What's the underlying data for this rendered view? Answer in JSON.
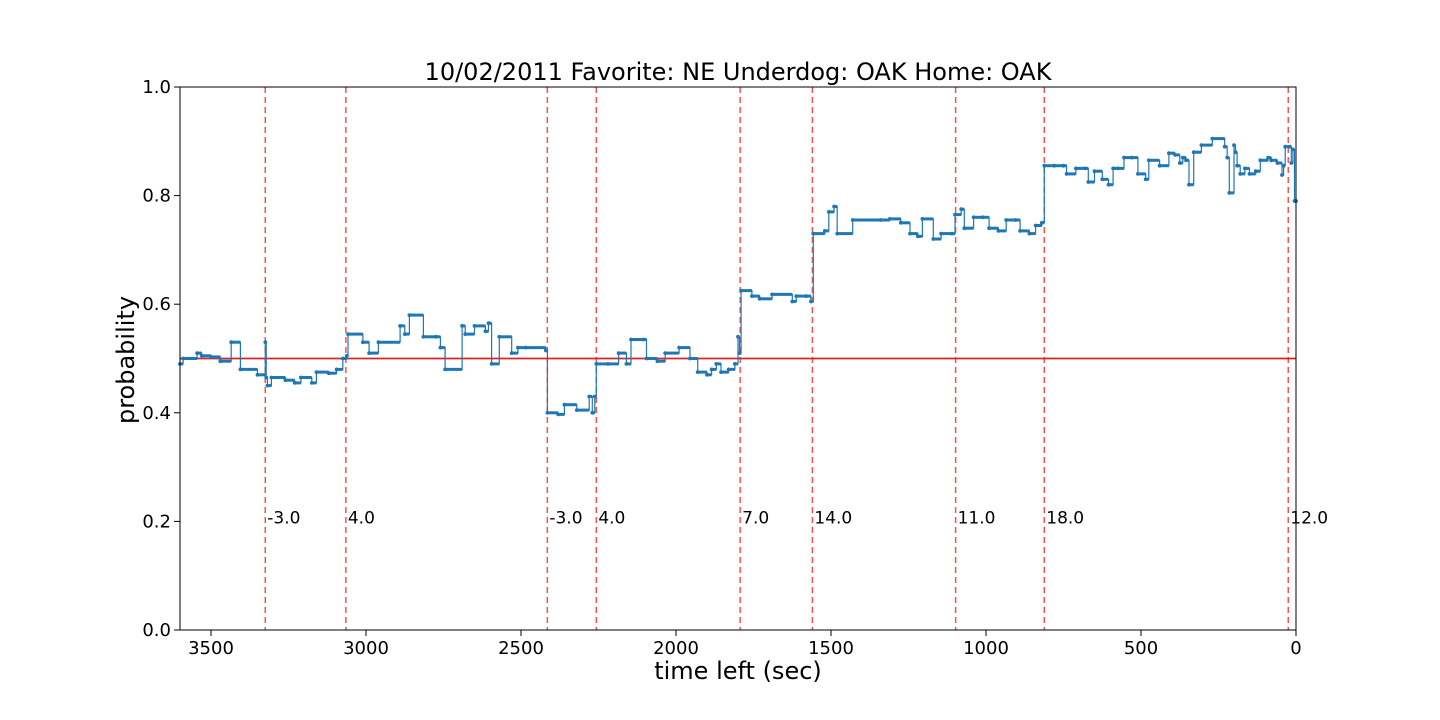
{
  "chart_data": {
    "type": "line",
    "title": "10/02/2011 Favorite: NE Underdog: OAK Home: OAK",
    "xlabel": "time left (sec)",
    "ylabel": "probability",
    "xlim": [
      3600,
      0
    ],
    "ylim": [
      0.0,
      1.0
    ],
    "x_ticks": [
      3500,
      3000,
      2500,
      2000,
      1500,
      1000,
      500,
      0
    ],
    "y_ticks": [
      0.0,
      0.2,
      0.4,
      0.6,
      0.8,
      1.0
    ],
    "x_tick_labels": [
      "3500",
      "3000",
      "2500",
      "2000",
      "1500",
      "1000",
      "500",
      "0"
    ],
    "y_tick_labels": [
      "0.0",
      "0.2",
      "0.4",
      "0.6",
      "0.8",
      "1.0"
    ],
    "grid": false,
    "reference_line": {
      "y": 0.5,
      "color": "#d62728"
    },
    "series": [
      {
        "color": "#1f77b4",
        "style": "step-line-with-markers",
        "points": [
          [
            3600,
            0.49
          ],
          [
            3590,
            0.5
          ],
          [
            3545,
            0.51
          ],
          [
            3530,
            0.505
          ],
          [
            3500,
            0.503
          ],
          [
            3470,
            0.495
          ],
          [
            3435,
            0.53
          ],
          [
            3405,
            0.48
          ],
          [
            3350,
            0.47
          ],
          [
            3325,
            0.53
          ],
          [
            3322,
            0.465
          ],
          [
            3318,
            0.45
          ],
          [
            3305,
            0.465
          ],
          [
            3260,
            0.46
          ],
          [
            3230,
            0.455
          ],
          [
            3210,
            0.465
          ],
          [
            3175,
            0.455
          ],
          [
            3160,
            0.475
          ],
          [
            3120,
            0.473
          ],
          [
            3095,
            0.48
          ],
          [
            3075,
            0.5
          ],
          [
            3062,
            0.505
          ],
          [
            3058,
            0.545
          ],
          [
            3010,
            0.53
          ],
          [
            2990,
            0.51
          ],
          [
            2960,
            0.53
          ],
          [
            2890,
            0.56
          ],
          [
            2875,
            0.545
          ],
          [
            2860,
            0.58
          ],
          [
            2815,
            0.54
          ],
          [
            2775,
            0.54
          ],
          [
            2760,
            0.52
          ],
          [
            2745,
            0.48
          ],
          [
            2690,
            0.56
          ],
          [
            2680,
            0.545
          ],
          [
            2650,
            0.56
          ],
          [
            2615,
            0.55
          ],
          [
            2605,
            0.565
          ],
          [
            2595,
            0.49
          ],
          [
            2570,
            0.54
          ],
          [
            2530,
            0.51
          ],
          [
            2510,
            0.52
          ],
          [
            2485,
            0.52
          ],
          [
            2420,
            0.515
          ],
          [
            2415,
            0.4
          ],
          [
            2380,
            0.397
          ],
          [
            2360,
            0.415
          ],
          [
            2320,
            0.405
          ],
          [
            2280,
            0.43
          ],
          [
            2270,
            0.4
          ],
          [
            2262,
            0.43
          ],
          [
            2257,
            0.49
          ],
          [
            2220,
            0.49
          ],
          [
            2185,
            0.51
          ],
          [
            2160,
            0.49
          ],
          [
            2145,
            0.535
          ],
          [
            2105,
            0.535
          ],
          [
            2095,
            0.5
          ],
          [
            2060,
            0.495
          ],
          [
            2035,
            0.51
          ],
          [
            1990,
            0.52
          ],
          [
            1955,
            0.5
          ],
          [
            1930,
            0.475
          ],
          [
            1900,
            0.47
          ],
          [
            1885,
            0.48
          ],
          [
            1870,
            0.49
          ],
          [
            1855,
            0.475
          ],
          [
            1830,
            0.48
          ],
          [
            1810,
            0.49
          ],
          [
            1800,
            0.54
          ],
          [
            1795,
            0.51
          ],
          [
            1790,
            0.625
          ],
          [
            1755,
            0.615
          ],
          [
            1730,
            0.61
          ],
          [
            1690,
            0.618
          ],
          [
            1625,
            0.605
          ],
          [
            1612,
            0.615
          ],
          [
            1580,
            0.615
          ],
          [
            1565,
            0.605
          ],
          [
            1557,
            0.73
          ],
          [
            1520,
            0.735
          ],
          [
            1507,
            0.77
          ],
          [
            1490,
            0.78
          ],
          [
            1480,
            0.73
          ],
          [
            1430,
            0.755
          ],
          [
            1340,
            0.755
          ],
          [
            1310,
            0.757
          ],
          [
            1275,
            0.75
          ],
          [
            1245,
            0.73
          ],
          [
            1220,
            0.725
          ],
          [
            1205,
            0.757
          ],
          [
            1170,
            0.72
          ],
          [
            1145,
            0.73
          ],
          [
            1110,
            0.73
          ],
          [
            1100,
            0.765
          ],
          [
            1080,
            0.775
          ],
          [
            1070,
            0.74
          ],
          [
            1040,
            0.76
          ],
          [
            1010,
            0.76
          ],
          [
            990,
            0.74
          ],
          [
            960,
            0.735
          ],
          [
            935,
            0.755
          ],
          [
            905,
            0.755
          ],
          [
            890,
            0.735
          ],
          [
            860,
            0.73
          ],
          [
            840,
            0.745
          ],
          [
            820,
            0.75
          ],
          [
            812,
            0.855
          ],
          [
            780,
            0.855
          ],
          [
            750,
            0.855
          ],
          [
            740,
            0.84
          ],
          [
            710,
            0.85
          ],
          [
            680,
            0.85
          ],
          [
            670,
            0.825
          ],
          [
            650,
            0.845
          ],
          [
            625,
            0.83
          ],
          [
            605,
            0.82
          ],
          [
            590,
            0.85
          ],
          [
            575,
            0.85
          ],
          [
            555,
            0.87
          ],
          [
            530,
            0.87
          ],
          [
            510,
            0.84
          ],
          [
            485,
            0.83
          ],
          [
            475,
            0.865
          ],
          [
            440,
            0.855
          ],
          [
            410,
            0.878
          ],
          [
            390,
            0.875
          ],
          [
            375,
            0.86
          ],
          [
            365,
            0.87
          ],
          [
            355,
            0.865
          ],
          [
            345,
            0.82
          ],
          [
            330,
            0.88
          ],
          [
            305,
            0.893
          ],
          [
            270,
            0.905
          ],
          [
            230,
            0.89
          ],
          [
            222,
            0.87
          ],
          [
            215,
            0.805
          ],
          [
            200,
            0.893
          ],
          [
            195,
            0.88
          ],
          [
            190,
            0.855
          ],
          [
            180,
            0.84
          ],
          [
            165,
            0.85
          ],
          [
            150,
            0.84
          ],
          [
            130,
            0.845
          ],
          [
            115,
            0.865
          ],
          [
            90,
            0.87
          ],
          [
            80,
            0.865
          ],
          [
            60,
            0.86
          ],
          [
            45,
            0.838
          ],
          [
            40,
            0.855
          ],
          [
            35,
            0.89
          ],
          [
            20,
            0.89
          ],
          [
            15,
            0.86
          ],
          [
            10,
            0.885
          ],
          [
            5,
            0.79
          ],
          [
            0,
            0.79
          ]
        ]
      }
    ],
    "vertical_markers": [
      {
        "x": 3325,
        "label": "-3.0"
      },
      {
        "x": 3065,
        "label": "4.0"
      },
      {
        "x": 2415,
        "label": "-3.0"
      },
      {
        "x": 2257,
        "label": "4.0"
      },
      {
        "x": 1793,
        "label": "7.0"
      },
      {
        "x": 1560,
        "label": "14.0"
      },
      {
        "x": 1098,
        "label": "11.0"
      },
      {
        "x": 812,
        "label": "18.0"
      },
      {
        "x": 25,
        "label": "12.0"
      }
    ],
    "marker_label_y": 0.2,
    "marker_color": "#ff5050"
  }
}
